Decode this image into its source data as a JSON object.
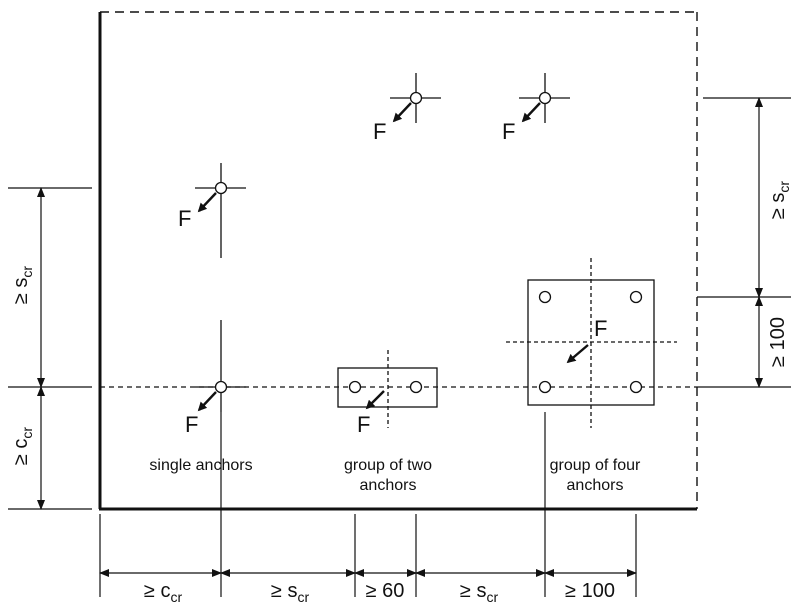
{
  "colors": {
    "stroke": "#111111",
    "background": "#ffffff"
  },
  "force_label": "F",
  "captions": {
    "single": "single anchors",
    "group2_line1": "group of two",
    "group2_line2": "anchors",
    "group4_line1": "group of four",
    "group4_line2": "anchors"
  },
  "dimensions": {
    "geq": "≥",
    "c_main": "c",
    "s_main": "s",
    "cr_sub": "cr",
    "sixty": "≥ 60",
    "hundred": "≥ 100"
  }
}
